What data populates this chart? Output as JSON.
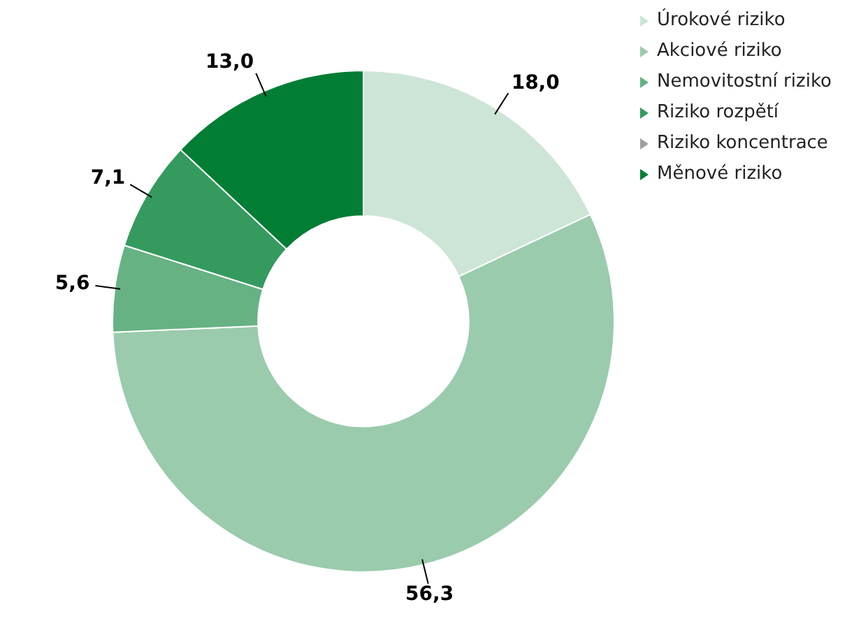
{
  "chart_data": {
    "type": "donut",
    "categories": [
      "Úrokové riziko",
      "Akciové riziko",
      "Nemovitostní riziko",
      "Riziko rozpětí",
      "Riziko koncentrace",
      "Měnové riziko"
    ],
    "values": [
      18.0,
      56.3,
      5.6,
      7.1,
      0,
      13.0
    ],
    "value_labels": [
      "18,0",
      "56,3",
      "5,6",
      "7,1",
      null,
      "13,0"
    ],
    "colors": [
      "#cde5d6",
      "#9acbac",
      "#66b283",
      "#349a5e",
      "#a0a0a0",
      "#017d34"
    ],
    "legend": "top right"
  }
}
